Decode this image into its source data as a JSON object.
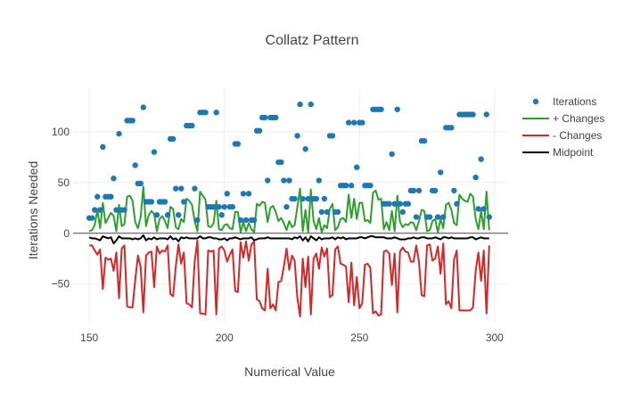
{
  "chart_data": {
    "type": "line",
    "title": "Collatz Pattern",
    "xlabel": "Numerical Value",
    "ylabel": "Iterations Needed",
    "xlim": [
      144,
      305
    ],
    "ylim": [
      -88,
      142
    ],
    "xticks": [
      150,
      200,
      250,
      300
    ],
    "xtick_labels": [
      "150",
      "200",
      "250",
      "300"
    ],
    "yticks": [
      -50,
      0,
      50,
      100
    ],
    "ytick_labels": [
      "−50",
      "0",
      "50",
      "100"
    ],
    "grid": true,
    "legend_position": "top-right",
    "x_start": 150,
    "series": [
      {
        "name": "Iterations",
        "kind": "markers",
        "color": "#1f77b4",
        "values": [
          15,
          15,
          23,
          36,
          23,
          85,
          36,
          36,
          36,
          54,
          23,
          98,
          23,
          23,
          111,
          111,
          111,
          67,
          49,
          49,
          124,
          31,
          31,
          31,
          80,
          18,
          31,
          31,
          31,
          18,
          93,
          93,
          44,
          18,
          44,
          31,
          106,
          106,
          106,
          44,
          13,
          119,
          119,
          119,
          26,
          26,
          26,
          119,
          26,
          18,
          26,
          39,
          26,
          26,
          88,
          88,
          13,
          39,
          13,
          39,
          13,
          13,
          101,
          101,
          114,
          114,
          52,
          114,
          114,
          114,
          70,
          70,
          52,
          26,
          52,
          34,
          34,
          96,
          127,
          34,
          83,
          34,
          127,
          34,
          34,
          52,
          21,
          34,
          21,
          96,
          96,
          21,
          21,
          47,
          47,
          47,
          109,
          47,
          109,
          65,
          109,
          109,
          47,
          47,
          47,
          122,
          122,
          122,
          122,
          29,
          29,
          29,
          78,
          29,
          122,
          29,
          21,
          29,
          29,
          42,
          42,
          16,
          42,
          91,
          91,
          16,
          16,
          42,
          42,
          16,
          60,
          16,
          104,
          104,
          104,
          42,
          29,
          117,
          117,
          117,
          117,
          117,
          117,
          55,
          24,
          73,
          24,
          117,
          16
        ],
        "point_labels": []
      },
      {
        "name": "+ Changes",
        "kind": "line",
        "color": "#2ca02c",
        "values": [
          2,
          3,
          8,
          23,
          5,
          30,
          10,
          15,
          20,
          17,
          2,
          28,
          7,
          9,
          36,
          37,
          32,
          11,
          5,
          16,
          46,
          7,
          18,
          22,
          19,
          2,
          14,
          17,
          12,
          5,
          26,
          24,
          6,
          4,
          14,
          11,
          34,
          32,
          28,
          12,
          2,
          41,
          37,
          33,
          7,
          6,
          10,
          32,
          4,
          3,
          8,
          9,
          5,
          4,
          21,
          21,
          1,
          11,
          2,
          10,
          4,
          1,
          29,
          27,
          31,
          30,
          11,
          25,
          27,
          21,
          12,
          15,
          10,
          3,
          12,
          6,
          8,
          26,
          44,
          2,
          23,
          1,
          43,
          12,
          4,
          15,
          1,
          8,
          5,
          24,
          29,
          3,
          6,
          14,
          15,
          11,
          38,
          15,
          34,
          14,
          30,
          30,
          12,
          13,
          10,
          40,
          42,
          33,
          34,
          4,
          11,
          3,
          22,
          2,
          37,
          11,
          6,
          9,
          8,
          11,
          10,
          3,
          12,
          23,
          22,
          2,
          3,
          12,
          14,
          1,
          14,
          5,
          28,
          30,
          23,
          10,
          8,
          38,
          34,
          32,
          31,
          39,
          36,
          14,
          4,
          22,
          4,
          41,
          3
        ],
        "point_labels": []
      },
      {
        "name": "- Changes",
        "kind": "line",
        "color": "#d62728",
        "values": [
          -12,
          -12,
          -17,
          -21,
          -16,
          -55,
          -24,
          -26,
          -25,
          -37,
          -19,
          -64,
          -15,
          -12,
          -72,
          -73,
          -73,
          -46,
          -22,
          -33,
          -78,
          -22,
          -19,
          -18,
          -53,
          -13,
          -20,
          -17,
          -18,
          -12,
          -60,
          -62,
          -33,
          -11,
          -30,
          -19,
          -69,
          -70,
          -73,
          -28,
          -7,
          -79,
          -79,
          -80,
          -17,
          -18,
          -17,
          -80,
          -15,
          -13,
          -17,
          -28,
          -21,
          -16,
          -57,
          -58,
          -9,
          -24,
          -8,
          -27,
          -11,
          -8,
          -65,
          -67,
          -74,
          -76,
          -35,
          -74,
          -70,
          -76,
          -48,
          -47,
          -33,
          -15,
          -36,
          -22,
          -27,
          -64,
          -82,
          -25,
          -53,
          -23,
          -80,
          -25,
          -20,
          -35,
          -14,
          -23,
          -15,
          -63,
          -61,
          -16,
          -13,
          -30,
          -31,
          -33,
          -68,
          -29,
          -71,
          -43,
          -74,
          -69,
          -31,
          -30,
          -34,
          -79,
          -77,
          -81,
          -80,
          -18,
          -17,
          -20,
          -51,
          -20,
          -78,
          -18,
          -14,
          -18,
          -19,
          -28,
          -28,
          -12,
          -28,
          -61,
          -62,
          -12,
          -11,
          -27,
          -25,
          -13,
          -40,
          -10,
          -70,
          -67,
          -74,
          -26,
          -17,
          -76,
          -76,
          -76,
          -76,
          -76,
          -73,
          -37,
          -19,
          -47,
          -17,
          -79,
          -12
        ],
        "point_labels": []
      },
      {
        "name": "Midpoint",
        "kind": "line",
        "color": "#000000",
        "values": [
          -4,
          -5,
          -5,
          -6,
          -7,
          -3,
          -4,
          -5,
          -4,
          -10,
          -7,
          -3,
          -5,
          -5,
          -5,
          -5,
          -6,
          -5,
          -6,
          -5,
          -2,
          -7,
          -5,
          -6,
          -4,
          -6,
          -5,
          -5,
          -5,
          -6,
          -3,
          -6,
          -5,
          -8,
          -4,
          -5,
          -4,
          -5,
          -5,
          -5,
          -5,
          -3,
          -5,
          -5,
          -4,
          -4,
          -5,
          -5,
          -6,
          -6,
          -5,
          -7,
          -5,
          -5,
          -4,
          -5,
          -6,
          -5,
          -5,
          -5,
          -4,
          -7,
          -6,
          -5,
          -5,
          -5,
          -4,
          -5,
          -5,
          -5,
          -5,
          -5,
          -5,
          -5,
          -5,
          -6,
          -4,
          -5,
          -3,
          -7,
          -4,
          -8,
          -3,
          -5,
          -7,
          -4,
          -6,
          -5,
          -5,
          -5,
          -4,
          -6,
          -4,
          -5,
          -4,
          -6,
          -5,
          -5,
          -5,
          -5,
          -4,
          -4,
          -5,
          -4,
          -3,
          -3,
          -4,
          -4,
          -4,
          -4,
          -5,
          -5,
          -5,
          -4,
          -5,
          -6,
          -6,
          -6,
          -5,
          -5,
          -4,
          -5,
          -5,
          -4,
          -4,
          -5,
          -5,
          -5,
          -4,
          -5,
          -6,
          -4,
          -4,
          -5,
          -4,
          -5,
          -5,
          -5,
          -5,
          -5,
          -5,
          -4,
          -4,
          -6,
          -5,
          -4,
          -5,
          -5,
          -5
        ]
      }
    ]
  }
}
